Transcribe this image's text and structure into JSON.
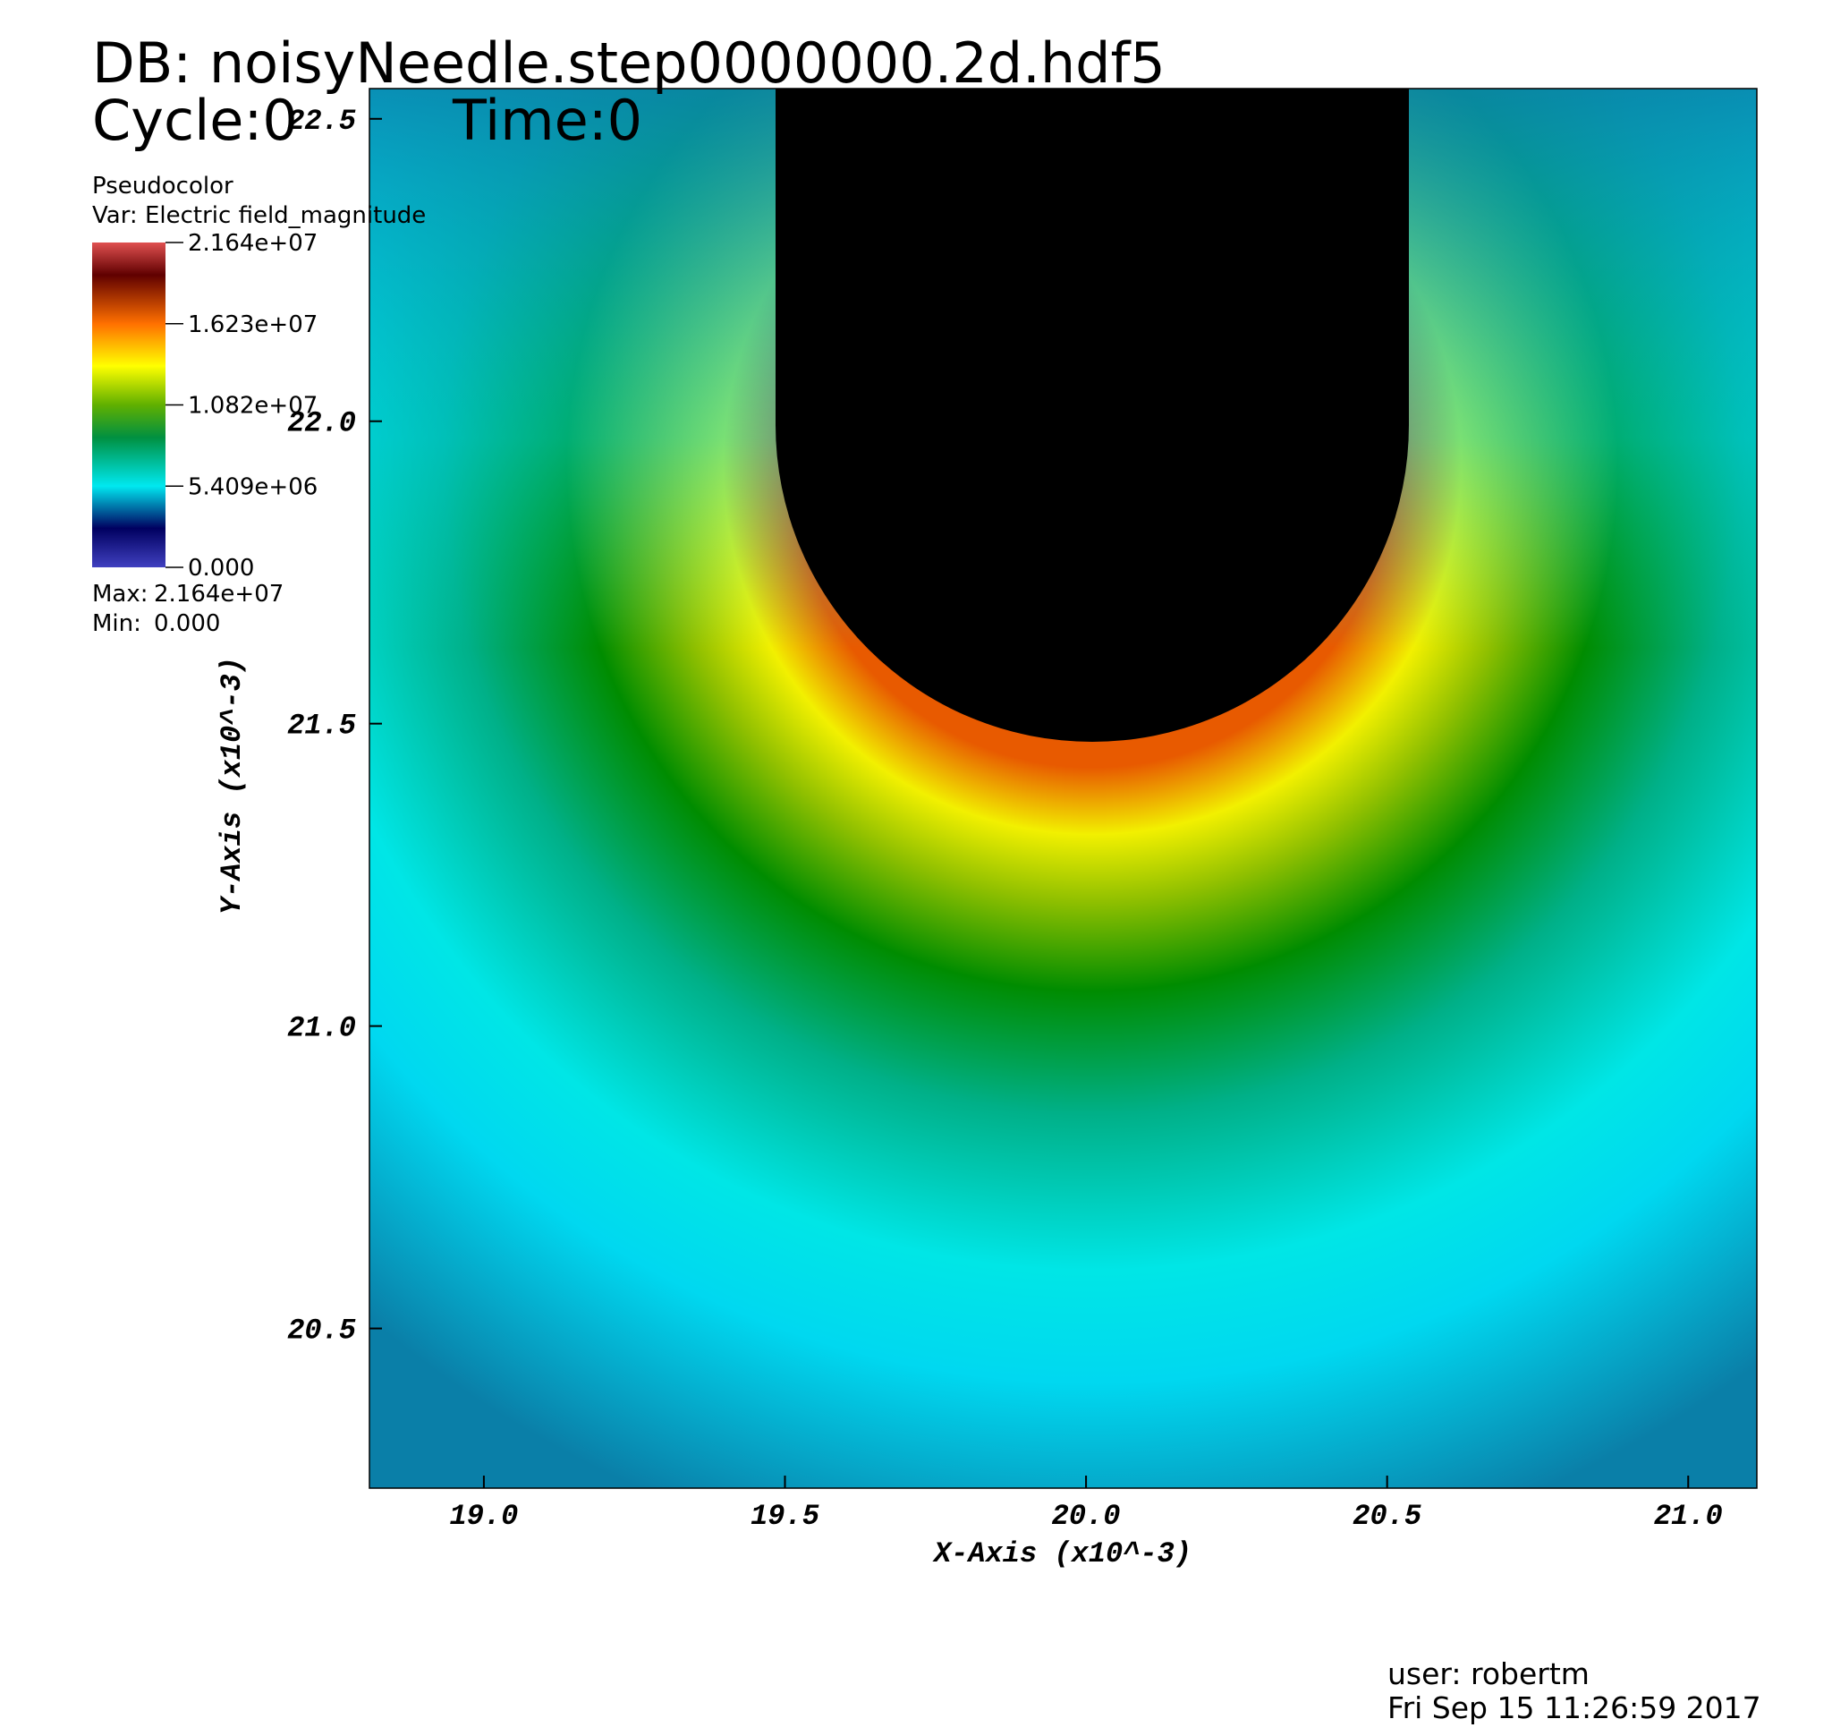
{
  "chart_data": {
    "type": "pseudocolor",
    "title": "DB: noisyNeedle.step0000000.2d.hdf5",
    "cycle": "Cycle:0",
    "time": "Time:0",
    "plot_name": "Pseudocolor",
    "variable": "Var: Electric field_magnitude",
    "x_label": "X-Axis (x10^-3)",
    "y_label": "Y-Axis (x10^-3)",
    "xlim": [
      18.81,
      21.114
    ],
    "ylim": [
      20.236,
      22.55
    ],
    "xticks": [
      {
        "value": 19.0,
        "label": "19.0"
      },
      {
        "value": 19.5,
        "label": "19.5"
      },
      {
        "value": 20.0,
        "label": "20.0"
      },
      {
        "value": 20.5,
        "label": "20.5"
      },
      {
        "value": 21.0,
        "label": "21.0"
      }
    ],
    "yticks": [
      {
        "value": 20.5,
        "label": "20.5"
      },
      {
        "value": 21.0,
        "label": "21.0"
      },
      {
        "value": 21.5,
        "label": "21.5"
      },
      {
        "value": 22.0,
        "label": "22.0"
      },
      {
        "value": 22.5,
        "label": "22.5"
      }
    ],
    "colorbar": {
      "lim": [
        0,
        21640000
      ],
      "ticks": [
        {
          "value": 21640000,
          "label": "2.164e+07"
        },
        {
          "value": 16230000,
          "label": "1.623e+07"
        },
        {
          "value": 10820000,
          "label": "1.082e+07"
        },
        {
          "value": 5409000,
          "label": "5.409e+06"
        },
        {
          "value": 0,
          "label": "0.000"
        }
      ]
    },
    "max_label": "Max:",
    "max": {
      "value": 21640000,
      "label": "2.164e+07"
    },
    "min_label": "Min:",
    "min": {
      "value": 0,
      "label": "0.000"
    },
    "user": "user: robertm",
    "date": "Fri Sep 15 11:26:59 2017"
  }
}
